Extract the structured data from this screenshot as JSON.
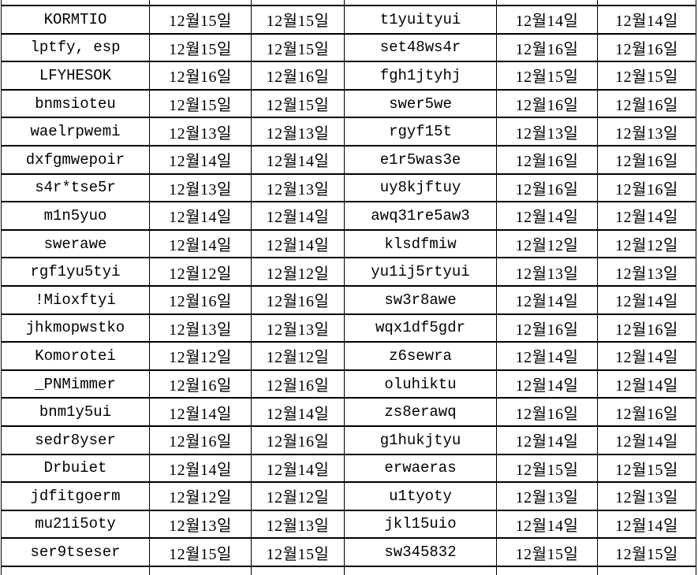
{
  "colors": {
    "grid_line": "#000000",
    "text": "#000000",
    "background": "#ffffff"
  },
  "table": {
    "rows": [
      [
        "KORMTIO",
        "12월15일",
        "12월15일",
        "t1yuityui",
        "12월14일",
        "12월14일"
      ],
      [
        "lptfy, esp",
        "12월15일",
        "12월15일",
        "set48ws4r",
        "12월16일",
        "12월16일"
      ],
      [
        "LFYHESOK",
        "12월16일",
        "12월16일",
        "fgh1jtyhj",
        "12월15일",
        "12월15일"
      ],
      [
        "bnmsioteu",
        "12월15일",
        "12월15일",
        "swer5we",
        "12월16일",
        "12월16일"
      ],
      [
        "waelrpwemi",
        "12월13일",
        "12월13일",
        "rgyf15t",
        "12월13일",
        "12월13일"
      ],
      [
        "dxfgmwepoir",
        "12월14일",
        "12월14일",
        "e1r5was3e",
        "12월16일",
        "12월16일"
      ],
      [
        "s4r*tse5r",
        "12월13일",
        "12월13일",
        "uy8kjftuy",
        "12월16일",
        "12월16일"
      ],
      [
        "m1n5yuo",
        "12월14일",
        "12월14일",
        "awq31re5aw3",
        "12월14일",
        "12월14일"
      ],
      [
        "swerawe",
        "12월14일",
        "12월14일",
        "klsdfmiw",
        "12월12일",
        "12월12일"
      ],
      [
        "rgf1yu5tyi",
        "12월12일",
        "12월12일",
        "yu1ij5rtyui",
        "12월13일",
        "12월13일"
      ],
      [
        "!Mioxftyi",
        "12월16일",
        "12월16일",
        "sw3r8awe",
        "12월14일",
        "12월14일"
      ],
      [
        "jhkmopwstko",
        "12월13일",
        "12월13일",
        "wqx1df5gdr",
        "12월16일",
        "12월16일"
      ],
      [
        "Komorotei",
        "12월12일",
        "12월12일",
        "z6sewra",
        "12월14일",
        "12월14일"
      ],
      [
        "_PNMimmer",
        "12월16일",
        "12월16일",
        "oluhiktu",
        "12월14일",
        "12월14일"
      ],
      [
        "bnm1y5ui",
        "12월14일",
        "12월14일",
        "zs8erawq",
        "12월16일",
        "12월16일"
      ],
      [
        "sedr8yser",
        "12월16일",
        "12월16일",
        "g1hukjtyu",
        "12월14일",
        "12월14일"
      ],
      [
        "Drbuiet",
        "12월14일",
        "12월14일",
        "erwaeras",
        "12월15일",
        "12월15일"
      ],
      [
        "jdfitgoerm",
        "12월12일",
        "12월12일",
        "u1tyoty",
        "12월13일",
        "12월13일"
      ],
      [
        "mu21i5oty",
        "12월13일",
        "12월13일",
        "jkl15uio",
        "12월14일",
        "12월14일"
      ],
      [
        "ser9tseser",
        "12월15일",
        "12월15일",
        "sw345832",
        "12월15일",
        "12월15일"
      ]
    ]
  }
}
